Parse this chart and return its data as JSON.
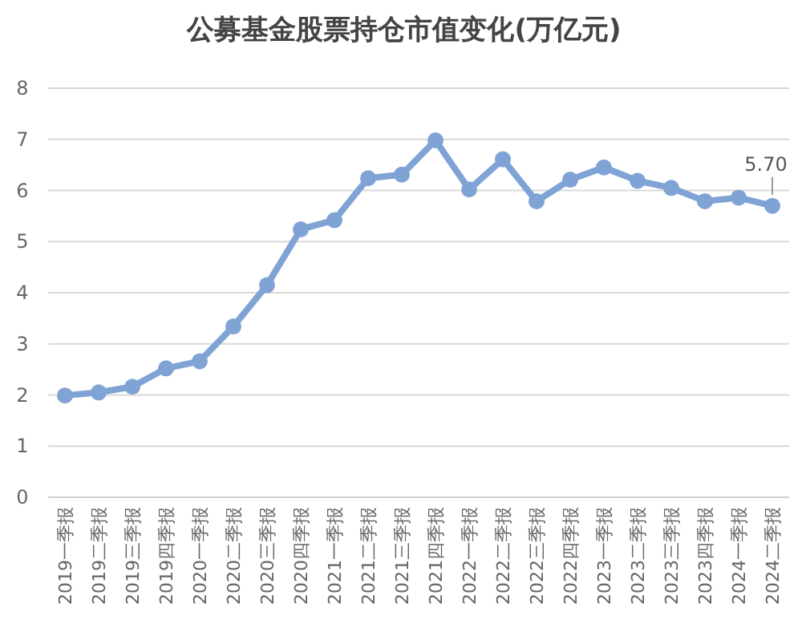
{
  "chart_data": {
    "type": "line",
    "title": "公募基金股票持仓市值变化(万亿元)",
    "categories": [
      "2019一季报",
      "2019二季报",
      "2019三季报",
      "2019四季报",
      "2020一季报",
      "2020二季报",
      "2020三季报",
      "2020四季报",
      "2021一季报",
      "2021二季报",
      "2021三季报",
      "2021四季报",
      "2022一季报",
      "2022二季报",
      "2022三季报",
      "2022四季报",
      "2023一季报",
      "2023二季报",
      "2023三季报",
      "2023四季报",
      "2024一季报",
      "2024二季报"
    ],
    "series": [
      {
        "color": "#7fa3d4",
        "values": [
          1.99,
          2.05,
          2.16,
          2.52,
          2.66,
          3.34,
          4.15,
          5.24,
          5.42,
          6.24,
          6.31,
          6.98,
          6.02,
          6.61,
          5.79,
          6.21,
          6.45,
          6.19,
          6.05,
          5.79,
          5.86,
          5.7
        ],
        "value_labels": [
          null,
          null,
          null,
          null,
          null,
          null,
          null,
          null,
          null,
          null,
          null,
          null,
          null,
          null,
          null,
          null,
          null,
          null,
          null,
          null,
          null,
          "5.70"
        ]
      }
    ],
    "ylim": [
      0,
      8
    ],
    "yticks": [
      0,
      1,
      2,
      3,
      4,
      5,
      6,
      7,
      8
    ],
    "grid": "y",
    "marker": "circle",
    "line_style": "solid"
  }
}
